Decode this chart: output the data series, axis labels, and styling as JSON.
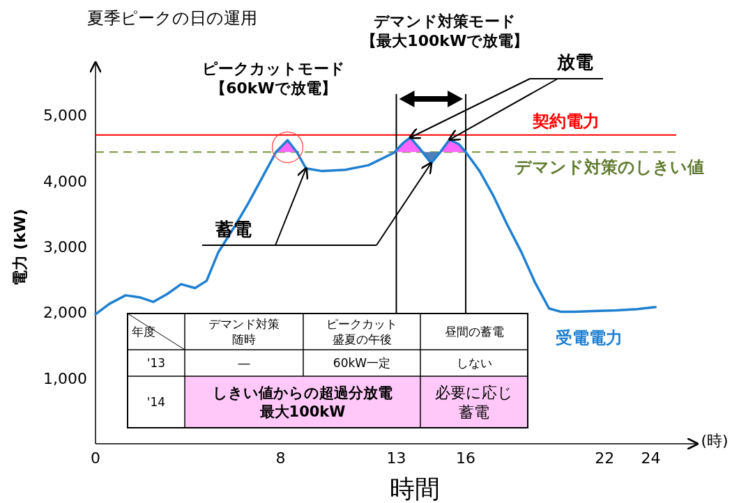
{
  "chart_data": {
    "type": "line",
    "title": "夏季ピークの日の運用",
    "xlabel": "時間",
    "ylabel": "電力 (kW)",
    "x": [
      0,
      0.6,
      1.3,
      1.9,
      2.5,
      3.1,
      3.7,
      4.3,
      4.8,
      5.3,
      6.0,
      6.6,
      7.2,
      7.8,
      8.3,
      8.7,
      9.1,
      9.8,
      10.8,
      11.8,
      12.9,
      13.3,
      13.6,
      14.0,
      14.5,
      14.9,
      15.3,
      15.7,
      16.0,
      16.6,
      17.2,
      17.8,
      18.4,
      19.0,
      19.6,
      20.1,
      20.7,
      21.5,
      22.5,
      23.4,
      24.2
    ],
    "series": [
      {
        "name": "受電電力",
        "color": "#1f7fd0",
        "values": [
          1970,
          2130,
          2260,
          2230,
          2160,
          2280,
          2430,
          2370,
          2480,
          2910,
          3300,
          3660,
          4050,
          4440,
          4620,
          4440,
          4190,
          4150,
          4170,
          4240,
          4430,
          4580,
          4660,
          4500,
          4270,
          4440,
          4630,
          4560,
          4440,
          4150,
          3770,
          3330,
          2920,
          2450,
          2060,
          2010,
          2010,
          2020,
          2030,
          2050,
          2080
        ]
      }
    ],
    "xlim": [
      0,
      26
    ],
    "ylim": [
      0,
      5800
    ],
    "xticks": [
      0,
      8,
      13,
      16,
      22,
      24
    ],
    "yticks": [
      {
        "value": 1000,
        "label": "1,000"
      },
      {
        "value": 2000,
        "label": "2,000"
      },
      {
        "value": 3000,
        "label": "3,000"
      },
      {
        "value": 4000,
        "label": "4,000"
      },
      {
        "value": 5000,
        "label": "5,000"
      }
    ],
    "ref_lines": [
      {
        "axis": "y",
        "value": 4700,
        "label": "契約電力",
        "color": "#ff0000"
      },
      {
        "axis": "y",
        "value": 4440,
        "label": "デマンド対策のしきい値",
        "color": "#77933c",
        "line_style": "dashed"
      },
      {
        "axis": "x",
        "value": 13,
        "color": "#000000"
      },
      {
        "axis": "x",
        "value": 16,
        "color": "#000000"
      }
    ],
    "annotations": [
      {
        "text": "ピークカットモード【60kWで放電】",
        "x": 8.3,
        "y": 4620
      },
      {
        "text": "放電",
        "x": 15.3,
        "y": 4630
      },
      "蓄電",
      "(時)",
      "年度",
      "デマンド対策随時",
      "ピークカット盛夏の午後",
      "昼間の蓄電",
      "'13",
      "―",
      "60kW一定",
      "しない",
      "'14",
      "しきい値からの超過分放電最大100kW",
      "必要に応じ蓄電",
      "デマンド対策モード【最大100kWで放電】"
    ],
    "grid": false,
    "marker": "none",
    "line_style": "solid"
  }
}
